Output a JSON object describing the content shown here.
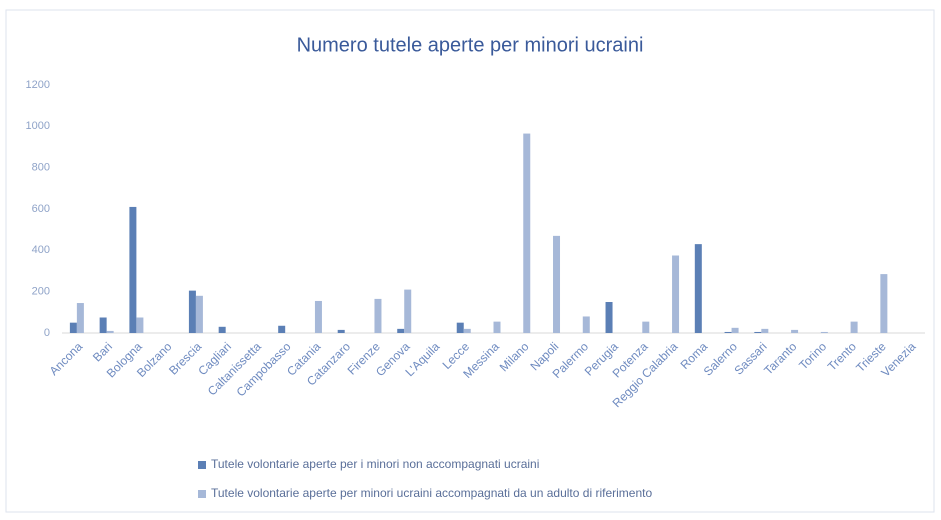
{
  "chart_data": {
    "type": "bar",
    "title": "Numero tutele aperte per minori ucraini",
    "categories": [
      "Ancona",
      "Bari",
      "Bologna",
      "Bolzano",
      "Brescia",
      "Cagliari",
      "Caltanissetta",
      "Campobasso",
      "Catania",
      "Catanzaro",
      "Firenze",
      "Genova",
      "L'Aquila",
      "Lecce",
      "Messina",
      "Milano",
      "Napoli",
      "Palermo",
      "Perugia",
      "Potenza",
      "Reggio Calabria",
      "Roma",
      "Salerno",
      "Sassari",
      "Taranto",
      "Torino",
      "Trento",
      "Trieste",
      "Venezia"
    ],
    "series": [
      {
        "name": "Tutele volontarie aperte per i minori non accompagnati ucraini",
        "color": "#5b7fb5",
        "values": [
          50,
          75,
          610,
          0,
          205,
          30,
          0,
          35,
          0,
          15,
          0,
          20,
          0,
          50,
          0,
          0,
          0,
          0,
          150,
          0,
          0,
          430,
          5,
          5,
          0,
          0,
          0,
          0,
          0
        ]
      },
      {
        "name": "Tutele volontarie aperte per minori ucraini accompagnati da un adulto di riferimento",
        "color": "#a6b8d8",
        "values": [
          145,
          10,
          75,
          0,
          180,
          0,
          0,
          0,
          155,
          0,
          165,
          210,
          0,
          20,
          55,
          965,
          470,
          80,
          0,
          55,
          375,
          0,
          25,
          20,
          15,
          5,
          55,
          285,
          0
        ]
      }
    ],
    "ylim": [
      0,
      1200
    ],
    "yticks": [
      0,
      200,
      400,
      600,
      800,
      1000,
      1200
    ],
    "grid": false
  }
}
